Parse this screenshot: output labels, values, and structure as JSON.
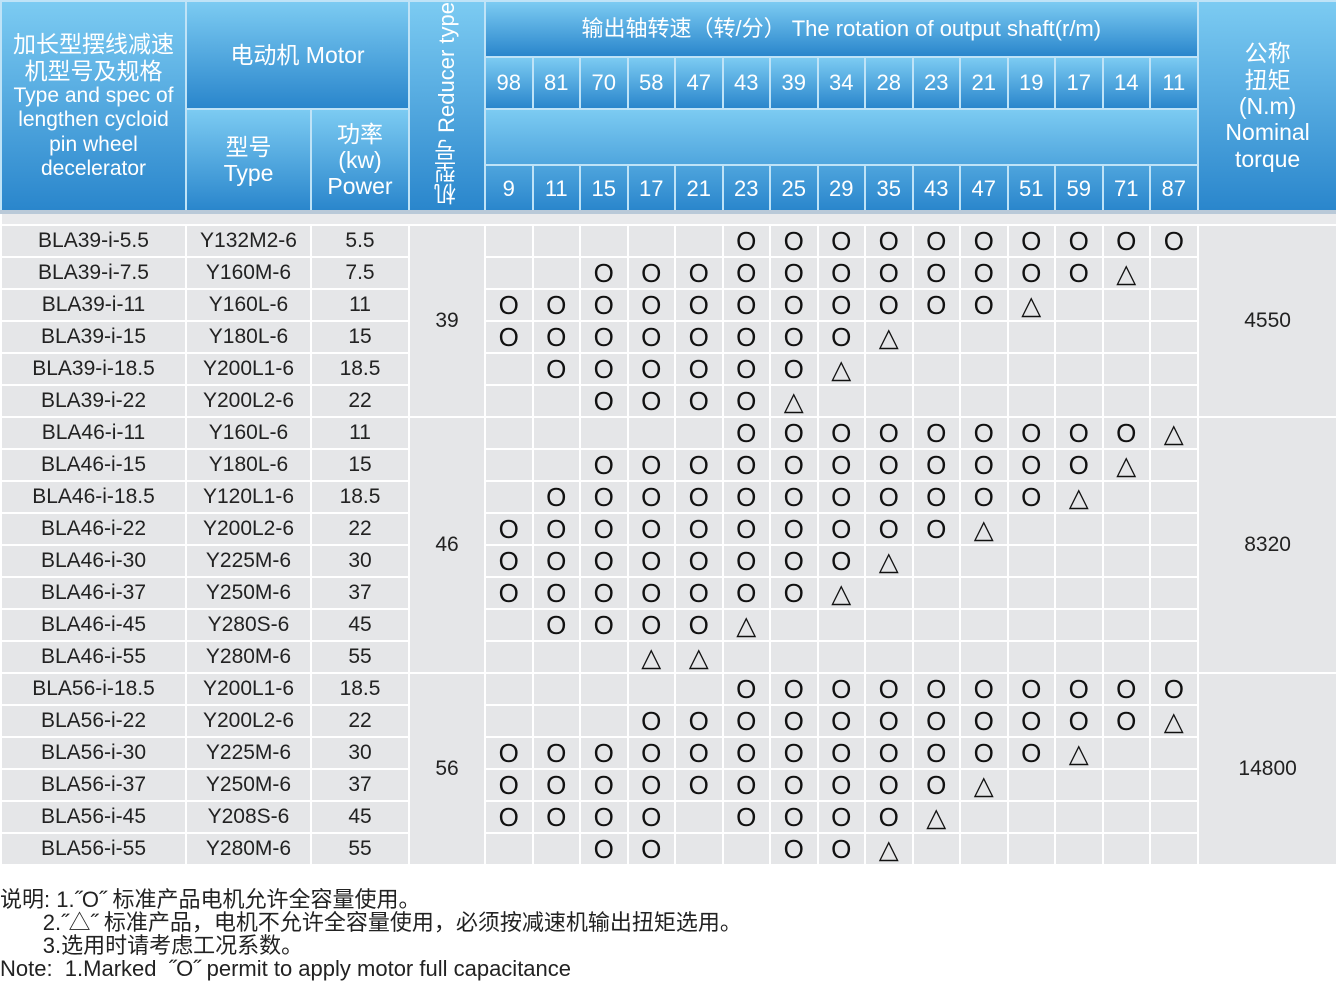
{
  "header": {
    "spec_cn": "加长型摆线减速机型号及规格",
    "spec_en": "Type and spec of lengthen cycloid pin wheel decelerator",
    "motor": "电动机 Motor",
    "type_cn": "型号",
    "type_en": "Type",
    "power_cn": "功率",
    "power_unit": "(kw)",
    "power_en": "Power",
    "reducer_cn": "机型号",
    "reducer_en": "Reducer type",
    "speed_title": "输出轴转速（转/分） The rotation of output shaft(r/m)",
    "torque_cn": "公称扭矩",
    "torque_unit": "(N.m)",
    "torque_en": "Nominal torque",
    "speeds_top": [
      "98",
      "81",
      "70",
      "58",
      "47",
      "43",
      "39",
      "34",
      "28",
      "23",
      "21",
      "19",
      "17",
      "14",
      "11"
    ],
    "speeds_bottom": [
      "9",
      "11",
      "15",
      "17",
      "21",
      "23",
      "25",
      "29",
      "35",
      "43",
      "47",
      "51",
      "59",
      "71",
      "87"
    ]
  },
  "groups": [
    {
      "reducer": "39",
      "torque": "4550",
      "rows": [
        {
          "model": "BLA39-i-5.5",
          "motor": "Y132M2-6",
          "power": "5.5",
          "marks": "-----OOOOOOOOOO"
        },
        {
          "model": "BLA39-i-7.5",
          "motor": "Y160M-6",
          "power": "7.5",
          "marks": "--OOOOOOOOOOO△-"
        },
        {
          "model": "BLA39-i-11",
          "motor": "Y160L-6",
          "power": "11",
          "marks": "OOOOOOOOOOO△---"
        },
        {
          "model": "BLA39-i-15",
          "motor": "Y180L-6",
          "power": "15",
          "marks": "OOOOOOOO△------"
        },
        {
          "model": "BLA39-i-18.5",
          "motor": "Y200L1-6",
          "power": "18.5",
          "marks": "-OOOOOO△-------"
        },
        {
          "model": "BLA39-i-22",
          "motor": "Y200L2-6",
          "power": "22",
          "marks": "--OOOO△--------"
        }
      ]
    },
    {
      "reducer": "46",
      "torque": "8320",
      "rows": [
        {
          "model": "BLA46-i-11",
          "motor": "Y160L-6",
          "power": "11",
          "marks": "-----OOOOOOOOO△"
        },
        {
          "model": "BLA46-i-15",
          "motor": "Y180L-6",
          "power": "15",
          "marks": "--OOOOOOOOOOO△-"
        },
        {
          "model": "BLA46-i-18.5",
          "motor": "Y120L1-6",
          "power": "18.5",
          "marks": "-OOOOOOOOOOO△--"
        },
        {
          "model": "BLA46-i-22",
          "motor": "Y200L2-6",
          "power": "22",
          "marks": "OOOOOOOOOO△----"
        },
        {
          "model": "BLA46-i-30",
          "motor": "Y225M-6",
          "power": "30",
          "marks": "OOOOOOOO△------"
        },
        {
          "model": "BLA46-i-37",
          "motor": "Y250M-6",
          "power": "37",
          "marks": "OOOOOOO△-------"
        },
        {
          "model": "BLA46-i-45",
          "motor": "Y280S-6",
          "power": "45",
          "marks": "-OOOO△---------"
        },
        {
          "model": "BLA46-i-55",
          "motor": "Y280M-6",
          "power": "55",
          "marks": "---△△----------"
        }
      ]
    },
    {
      "reducer": "56",
      "torque": "14800",
      "rows": [
        {
          "model": "BLA56-i-18.5",
          "motor": "Y200L1-6",
          "power": "18.5",
          "marks": "-----OOOOOOOOOO"
        },
        {
          "model": "BLA56-i-22",
          "motor": "Y200L2-6",
          "power": "22",
          "marks": "---OOOOOOOOOOO△"
        },
        {
          "model": "BLA56-i-30",
          "motor": "Y225M-6",
          "power": "30",
          "marks": "OOOOOOOOOOOO△--"
        },
        {
          "model": "BLA56-i-37",
          "motor": "Y250M-6",
          "power": "37",
          "marks": "OOOOOOOOOO△----"
        },
        {
          "model": "BLA56-i-45",
          "motor": "Y208S-6",
          "power": "45",
          "marks": "OOOO-OOOO△-----"
        },
        {
          "model": "BLA56-i-55",
          "motor": "Y280M-6",
          "power": "55",
          "marks": "--OO--OO△------"
        }
      ]
    }
  ],
  "notes": {
    "label": "说明:",
    "line1": "1.˝O˝ 标准产品电机允许全容量使用。",
    "line2": "2.˝△˝ 标准产品，电机不允许全容量使用，必须按减速机输出扭矩选用。",
    "line3": "3.选用时请考虑工况系数。",
    "line4": "Note:  1.Marked  ˝O˝ permit to apply motor full capacitance"
  }
}
